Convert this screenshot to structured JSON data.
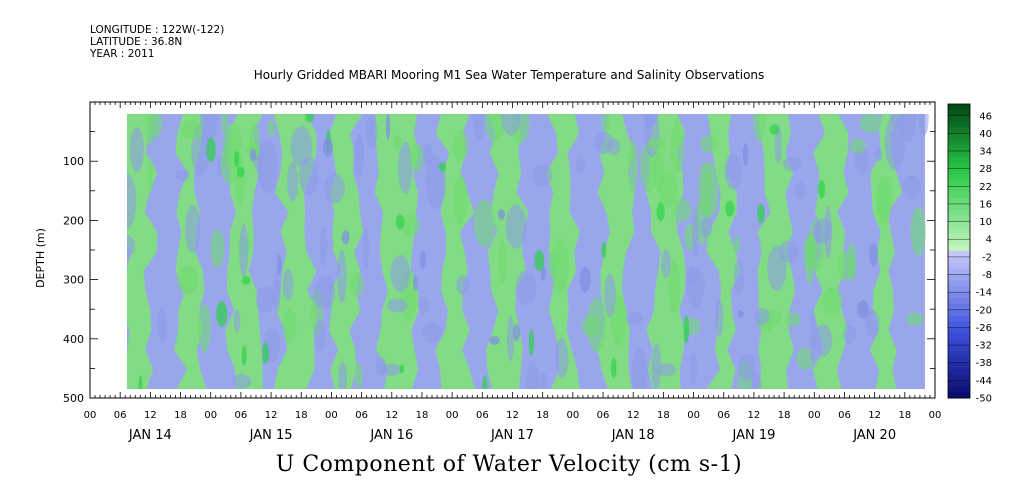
{
  "header": {
    "longitude": "LONGITUDE : 122W(-122)",
    "latitude": "LATITUDE : 36.8N",
    "year": "YEAR : 2011",
    "title": "Hourly Gridded MBARI Mooring M1 Sea Water Temperature and Salinity Observations"
  },
  "chart_data": {
    "type": "heatmap",
    "title": "U Component of Water Velocity (cm s-1)",
    "ylabel": "DEPTH (m)",
    "ylim": [
      500,
      0
    ],
    "y_ticks": [
      "100",
      "200",
      "300",
      "400",
      "500"
    ],
    "x_hour_ticks": [
      "00",
      "06",
      "12",
      "18",
      "00",
      "06",
      "12",
      "18",
      "00",
      "06",
      "12",
      "18",
      "00",
      "06",
      "12",
      "18",
      "00",
      "06",
      "12",
      "18",
      "00",
      "06",
      "12",
      "18",
      "00",
      "06",
      "12",
      "18",
      "00"
    ],
    "x_day_labels": [
      "JAN 14",
      "JAN 15",
      "JAN 16",
      "JAN 17",
      "JAN 18",
      "JAN 19",
      "JAN 20"
    ],
    "data_time_range_hours": [
      7,
      166
    ],
    "data_depth_range_m": [
      20,
      485
    ],
    "colorbar": {
      "levels": [
        "46",
        "40",
        "34",
        "28",
        "22",
        "16",
        "10",
        "4",
        "-2",
        "-8",
        "-14",
        "-20",
        "-26",
        "-32",
        "-38",
        "-44",
        "-50"
      ],
      "range": [
        -50,
        50
      ],
      "negative_color": "#9aa6ec",
      "positive_color": "#7fe27a"
    },
    "pattern": "alternating vertical bands of weak negative (blue) and weak positive (green) velocity, roughly -15 to +20 cm/s, spanning all depths"
  }
}
